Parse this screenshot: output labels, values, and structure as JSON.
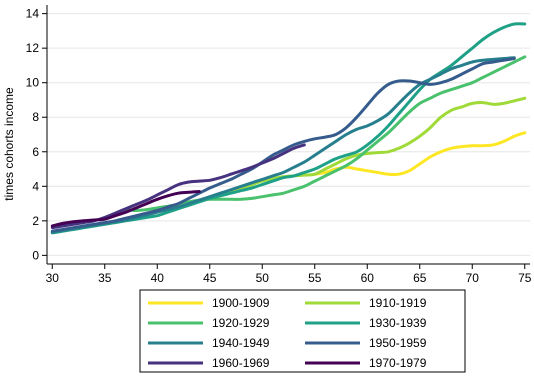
{
  "chart_data": {
    "type": "line",
    "title": "",
    "xlabel": "",
    "ylabel": "times cohorts income",
    "xlim": [
      29.5,
      75.5
    ],
    "ylim": [
      -0.5,
      14.5
    ],
    "xticks": [
      30,
      35,
      40,
      45,
      50,
      55,
      60,
      65,
      70,
      75
    ],
    "yticks": [
      0,
      2,
      4,
      6,
      8,
      10,
      12,
      14
    ],
    "grid": "horizontal",
    "legend_position": "bottom",
    "series": [
      {
        "name": "1900-1909",
        "color": "#fde725",
        "x": [
          55,
          56,
          57,
          58,
          59,
          60,
          61,
          62,
          63,
          64,
          65,
          66,
          67,
          68,
          69,
          70,
          71,
          72,
          73,
          74,
          75
        ],
        "y": [
          4.7,
          4.8,
          5.0,
          5.1,
          5.0,
          4.9,
          4.8,
          4.7,
          4.7,
          4.9,
          5.3,
          5.7,
          6.0,
          6.2,
          6.3,
          6.35,
          6.35,
          6.4,
          6.6,
          6.9,
          7.1
        ]
      },
      {
        "name": "1910-1919",
        "color": "#a0da39",
        "x": [
          44,
          45,
          46,
          47,
          48,
          49,
          50,
          51,
          52,
          53,
          54,
          55,
          56,
          57,
          58,
          59,
          60,
          61,
          62,
          63,
          64,
          65,
          66,
          67,
          68,
          69,
          70,
          71,
          72,
          73,
          74,
          75
        ],
        "y": [
          3.2,
          3.35,
          3.5,
          3.7,
          3.9,
          4.1,
          4.3,
          4.45,
          4.55,
          4.6,
          4.65,
          4.7,
          5.0,
          5.3,
          5.6,
          5.8,
          5.9,
          5.95,
          6.0,
          6.2,
          6.5,
          6.9,
          7.4,
          8.0,
          8.4,
          8.6,
          8.8,
          8.85,
          8.75,
          8.8,
          8.95,
          9.1
        ]
      },
      {
        "name": "1920-1929",
        "color": "#4ac16d",
        "x": [
          37,
          38,
          39,
          40,
          41,
          42,
          43,
          44,
          45,
          46,
          47,
          48,
          49,
          50,
          51,
          52,
          53,
          54,
          55,
          56,
          57,
          58,
          59,
          60,
          61,
          62,
          63,
          64,
          65,
          66,
          67,
          68,
          69,
          70,
          71,
          72,
          73,
          74,
          75
        ],
        "y": [
          2.65,
          2.6,
          2.65,
          2.75,
          2.85,
          2.95,
          3.1,
          3.2,
          3.25,
          3.25,
          3.25,
          3.25,
          3.3,
          3.4,
          3.5,
          3.6,
          3.8,
          4.0,
          4.3,
          4.6,
          4.9,
          5.2,
          5.6,
          6.1,
          6.6,
          7.1,
          7.7,
          8.3,
          8.8,
          9.1,
          9.4,
          9.6,
          9.8,
          10.0,
          10.3,
          10.6,
          10.9,
          11.2,
          11.5
        ]
      },
      {
        "name": "1930-1939",
        "color": "#1fa187",
        "x": [
          30,
          31,
          32,
          33,
          34,
          35,
          36,
          37,
          38,
          39,
          40,
          41,
          42,
          43,
          44,
          45,
          46,
          47,
          48,
          49,
          50,
          51,
          52,
          53,
          54,
          55,
          56,
          57,
          58,
          59,
          60,
          61,
          62,
          63,
          64,
          65,
          66,
          67,
          68,
          69,
          70,
          71,
          72,
          73,
          74,
          75
        ],
        "y": [
          1.3,
          1.4,
          1.5,
          1.6,
          1.7,
          1.8,
          1.9,
          2.0,
          2.1,
          2.2,
          2.3,
          2.5,
          2.7,
          2.9,
          3.1,
          3.3,
          3.45,
          3.6,
          3.75,
          3.9,
          4.1,
          4.3,
          4.5,
          4.6,
          4.8,
          5.0,
          5.3,
          5.6,
          5.8,
          6.0,
          6.4,
          6.9,
          7.5,
          8.2,
          8.9,
          9.6,
          10.2,
          10.6,
          11.0,
          11.5,
          12.0,
          12.5,
          12.9,
          13.2,
          13.4,
          13.4
        ]
      },
      {
        "name": "1940-1949",
        "color": "#277f8e",
        "x": [
          30,
          31,
          32,
          33,
          34,
          35,
          36,
          37,
          38,
          39,
          40,
          41,
          42,
          43,
          44,
          45,
          46,
          47,
          48,
          49,
          50,
          51,
          52,
          53,
          54,
          55,
          56,
          57,
          58,
          59,
          60,
          61,
          62,
          63,
          64,
          65,
          66,
          67,
          68,
          69,
          70,
          71,
          72,
          73,
          74
        ],
        "y": [
          1.35,
          1.45,
          1.55,
          1.65,
          1.75,
          1.85,
          1.95,
          2.05,
          2.2,
          2.35,
          2.5,
          2.65,
          2.8,
          3.0,
          3.2,
          3.4,
          3.6,
          3.8,
          4.0,
          4.2,
          4.4,
          4.6,
          4.8,
          5.1,
          5.4,
          5.8,
          6.2,
          6.6,
          7.0,
          7.3,
          7.5,
          7.8,
          8.2,
          8.8,
          9.4,
          9.9,
          10.2,
          10.5,
          10.8,
          11.0,
          11.2,
          11.3,
          11.35,
          11.4,
          11.45
        ]
      },
      {
        "name": "1950-1959",
        "color": "#365c8d",
        "x": [
          30,
          31,
          32,
          33,
          34,
          35,
          36,
          37,
          38,
          39,
          40,
          41,
          42,
          43,
          44,
          45,
          46,
          47,
          48,
          49,
          50,
          51,
          52,
          53,
          54,
          55,
          56,
          57,
          58,
          59,
          60,
          61,
          62,
          63,
          64,
          65,
          66,
          67,
          68,
          69,
          70,
          71,
          72,
          73,
          74
        ],
        "y": [
          1.4,
          1.5,
          1.6,
          1.7,
          1.8,
          1.9,
          2.0,
          2.15,
          2.3,
          2.45,
          2.6,
          2.8,
          3.0,
          3.3,
          3.6,
          3.9,
          4.15,
          4.4,
          4.7,
          5.0,
          5.4,
          5.8,
          6.1,
          6.4,
          6.6,
          6.75,
          6.85,
          7.0,
          7.4,
          8.0,
          8.7,
          9.4,
          9.9,
          10.1,
          10.1,
          10.0,
          9.9,
          10.0,
          10.2,
          10.5,
          10.8,
          11.1,
          11.2,
          11.3,
          11.4
        ]
      },
      {
        "name": "1960-1969",
        "color": "#46327e",
        "x": [
          30,
          31,
          32,
          33,
          34,
          35,
          36,
          37,
          38,
          39,
          40,
          41,
          42,
          43,
          44,
          45,
          46,
          47,
          48,
          49,
          50,
          51,
          52,
          53,
          54
        ],
        "y": [
          1.6,
          1.7,
          1.8,
          1.9,
          2.0,
          2.2,
          2.45,
          2.7,
          2.95,
          3.2,
          3.5,
          3.8,
          4.1,
          4.25,
          4.3,
          4.35,
          4.5,
          4.7,
          4.9,
          5.1,
          5.35,
          5.6,
          5.9,
          6.2,
          6.4
        ]
      },
      {
        "name": "1970-1979",
        "color": "#440154",
        "x": [
          30,
          31,
          32,
          33,
          34,
          35,
          36,
          37,
          38,
          39,
          40,
          41,
          42,
          43,
          44
        ],
        "y": [
          1.7,
          1.85,
          1.95,
          2.0,
          2.05,
          2.1,
          2.3,
          2.5,
          2.75,
          3.0,
          3.25,
          3.45,
          3.6,
          3.65,
          3.7
        ]
      }
    ]
  }
}
